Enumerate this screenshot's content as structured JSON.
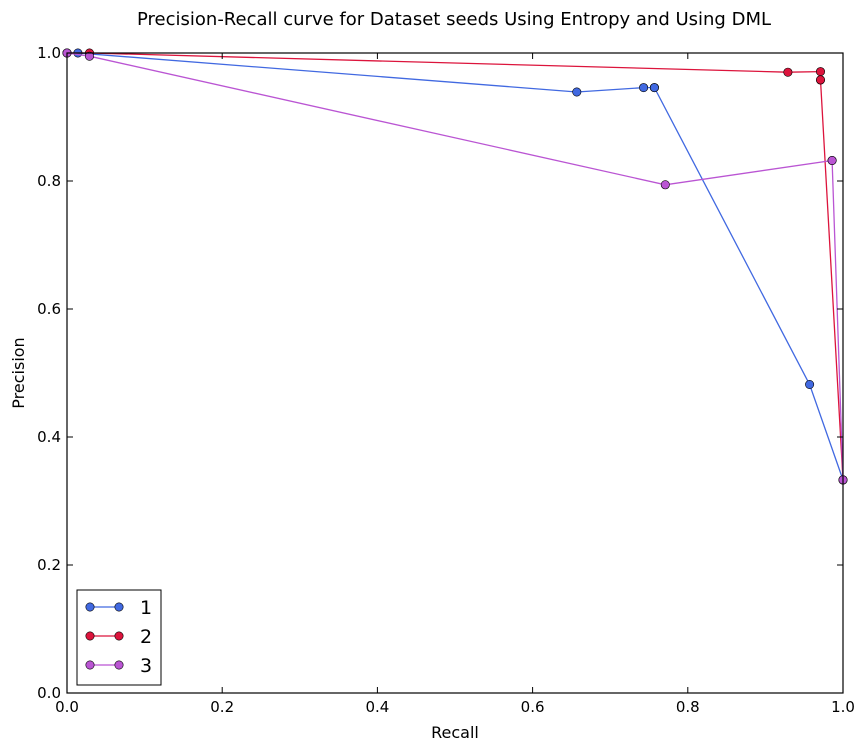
{
  "chart_data": {
    "type": "line",
    "title": "Precision-Recall curve for Dataset seeds Using Entropy and Using DML",
    "xlabel": "Recall",
    "ylabel": "Precision",
    "xlim": [
      0.0,
      1.0
    ],
    "ylim": [
      0.0,
      1.0
    ],
    "xticks": [
      "0.0",
      "0.2",
      "0.4",
      "0.6",
      "0.8",
      "1.0"
    ],
    "yticks": [
      "0.0",
      "0.2",
      "0.4",
      "0.6",
      "0.8",
      "1.0"
    ],
    "grid": false,
    "legend_position": "bottom-left",
    "series": [
      {
        "name": "1",
        "color": "#4169e1",
        "x": [
          0.0,
          0.014,
          0.657,
          0.743,
          0.757,
          0.757,
          0.957,
          1.0
        ],
        "y": [
          1.0,
          1.0,
          0.939,
          0.946,
          0.946,
          0.946,
          0.482,
          0.333
        ]
      },
      {
        "name": "2",
        "color": "#dc143c",
        "x": [
          0.0,
          0.029,
          0.929,
          0.971,
          0.971,
          0.971,
          1.0
        ],
        "y": [
          1.0,
          1.0,
          0.97,
          0.971,
          0.958,
          0.958,
          0.333
        ]
      },
      {
        "name": "3",
        "color": "#ba55d3",
        "x": [
          0.0,
          0.029,
          0.771,
          0.986,
          0.986,
          1.0
        ],
        "y": [
          1.0,
          0.995,
          0.794,
          0.832,
          0.832,
          0.333
        ]
      }
    ]
  }
}
